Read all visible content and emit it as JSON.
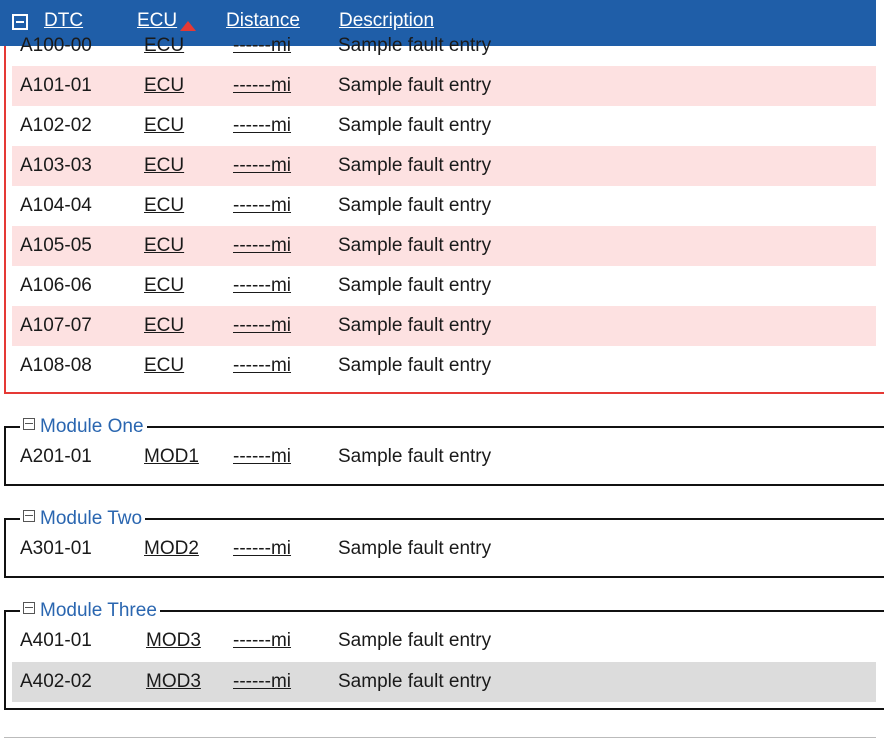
{
  "header": {
    "columns": {
      "dtc": "DTC",
      "ecu": "ECU",
      "distance": "Distance",
      "description": "Description"
    },
    "collapse_icon": "collapse-all-icon",
    "sort_icon": "sort-ascending-icon",
    "colors": {
      "bar": "#1f5ea8",
      "sort": "#e53935"
    }
  },
  "partial_row": {
    "dtc": "A100-00",
    "ecu": "ECU",
    "distance": "------mi",
    "description": "Sample fault entry"
  },
  "bcm_rows": [
    {
      "dtc": "A101-01",
      "ecu": "ECU",
      "distance": "------mi",
      "description": "Sample fault entry"
    },
    {
      "dtc": "A102-02",
      "ecu": "ECU",
      "distance": "------mi",
      "description": "Sample fault entry"
    },
    {
      "dtc": "A103-03",
      "ecu": "ECU",
      "distance": "------mi",
      "description": "Sample fault entry"
    },
    {
      "dtc": "A104-04",
      "ecu": "ECU",
      "distance": "------mi",
      "description": "Sample fault entry"
    },
    {
      "dtc": "A105-05",
      "ecu": "ECU",
      "distance": "------mi",
      "description": "Sample fault entry"
    },
    {
      "dtc": "A106-06",
      "ecu": "ECU",
      "distance": "------mi",
      "description": "Sample fault entry"
    },
    {
      "dtc": "A107-07",
      "ecu": "ECU",
      "distance": "------mi",
      "description": "Sample fault entry"
    },
    {
      "dtc": "A108-08",
      "ecu": "ECU",
      "distance": "------mi",
      "description": "Sample fault entry"
    }
  ],
  "groups": [
    {
      "title": "Module One",
      "rows": [
        {
          "dtc": "A201-01",
          "ecu": "MOD1",
          "distance": "------mi",
          "description": "Sample fault entry"
        }
      ]
    },
    {
      "title": "Module Two",
      "rows": [
        {
          "dtc": "A301-01",
          "ecu": "MOD2",
          "distance": "------mi",
          "description": "Sample fault entry"
        }
      ]
    },
    {
      "title": "Module Three",
      "rows": [
        {
          "dtc": "A401-01",
          "ecu": "MOD3",
          "distance": "------mi",
          "description": "Sample fault entry"
        },
        {
          "dtc": "A402-02",
          "ecu": "MOD3",
          "distance": "------mi",
          "description": "Sample fault entry"
        }
      ]
    }
  ],
  "colors": {
    "highlight_row": "#fde1e1",
    "selected_row": "#dcdcdc",
    "group_title": "#2a66b0",
    "active_group_border": "#e53935"
  }
}
